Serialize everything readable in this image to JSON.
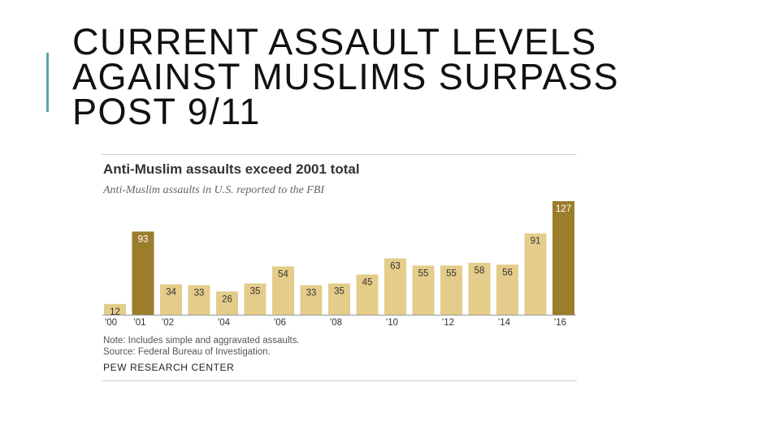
{
  "slide": {
    "title_lines": [
      "CURRENT ASSAULT LEVELS",
      "AGAINST MUSLIMS SURPASS",
      "POST 9/11"
    ]
  },
  "colors": {
    "accent": "#5fa4a8",
    "bar_light": "#e4cc8a",
    "bar_dark": "#9c7d2c"
  },
  "chart_data": {
    "type": "bar",
    "title": "Anti-Muslim assaults exceed 2001 total",
    "subtitle": "Anti-Muslim assaults in U.S. reported to the FBI",
    "categories": [
      "2000",
      "2001",
      "2002",
      "2003",
      "2004",
      "2005",
      "2006",
      "2007",
      "2008",
      "2009",
      "2010",
      "2011",
      "2012",
      "2013",
      "2014",
      "2015",
      "2016"
    ],
    "tick_labels": [
      "'00",
      "'01",
      "'02",
      "",
      "'04",
      "",
      "'06",
      "",
      "'08",
      "",
      "'10",
      "",
      "'12",
      "",
      "'14",
      "",
      "'16"
    ],
    "values": [
      12,
      93,
      34,
      33,
      26,
      35,
      54,
      33,
      35,
      45,
      63,
      55,
      55,
      58,
      56,
      91,
      127
    ],
    "highlighted": [
      "2001",
      "2016"
    ],
    "ylim": [
      0,
      127
    ],
    "grid": false,
    "xlabel": "",
    "ylabel": "",
    "note": "Note: Includes simple and aggravated assaults.",
    "source": "Source: Federal Bureau of Investigation.",
    "organization": "PEW RESEARCH CENTER"
  }
}
